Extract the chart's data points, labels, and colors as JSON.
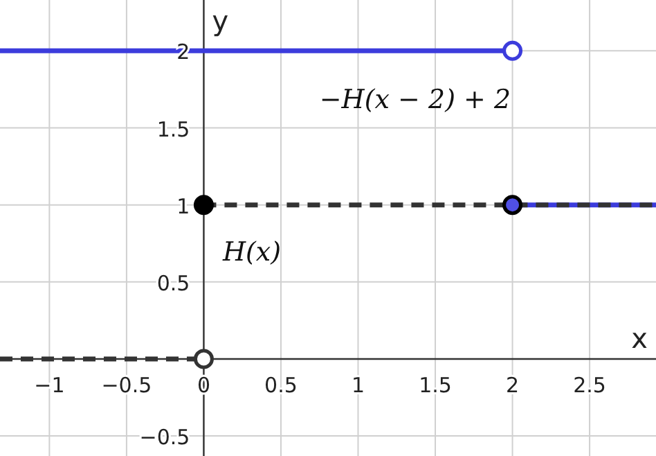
{
  "chart_data": {
    "type": "line",
    "xlabel": "x",
    "ylabel": "y",
    "xlim": [
      -1.32,
      2.93
    ],
    "ylim": [
      -0.63,
      2.33
    ],
    "xticks": [
      -1,
      -0.5,
      0,
      0.5,
      1,
      1.5,
      2,
      2.5
    ],
    "yticks": [
      -0.5,
      {
        "value": 0,
        "label": null
      },
      0.5,
      1,
      1.5,
      2
    ],
    "grid": true,
    "series": [
      {
        "color": "#333333",
        "line_style": "dashed",
        "x": [
          -1.32,
          0
        ],
        "values": [
          0,
          0
        ]
      },
      {
        "type": "scatter",
        "color": "#ffffff",
        "marker": "circle",
        "x": [
          0
        ],
        "values": [
          0
        ]
      },
      {
        "color": "#3c3cdc",
        "line_style": "solid",
        "x": [
          -1.32,
          2
        ],
        "values": [
          2,
          2
        ]
      },
      {
        "type": "scatter",
        "color": "#ffffff",
        "marker": "circle",
        "x": [
          2
        ],
        "values": [
          2
        ]
      },
      {
        "color": "#3c3cdc",
        "line_style": "solid",
        "x": [
          2,
          2.93
        ],
        "values": [
          1,
          1
        ]
      },
      {
        "color": "#333333",
        "line_style": "dashed",
        "x": [
          0,
          2.93
        ],
        "values": [
          1,
          1
        ]
      },
      {
        "type": "scatter",
        "color": "#000000",
        "marker": "circle",
        "x": [
          0
        ],
        "values": [
          1
        ]
      },
      {
        "type": "scatter",
        "color": "#5050e6",
        "marker": "circle",
        "x": [
          2
        ],
        "values": [
          1
        ]
      }
    ],
    "annotations": [
      "−H(x − 2) + 2",
      "H(x)"
    ]
  }
}
